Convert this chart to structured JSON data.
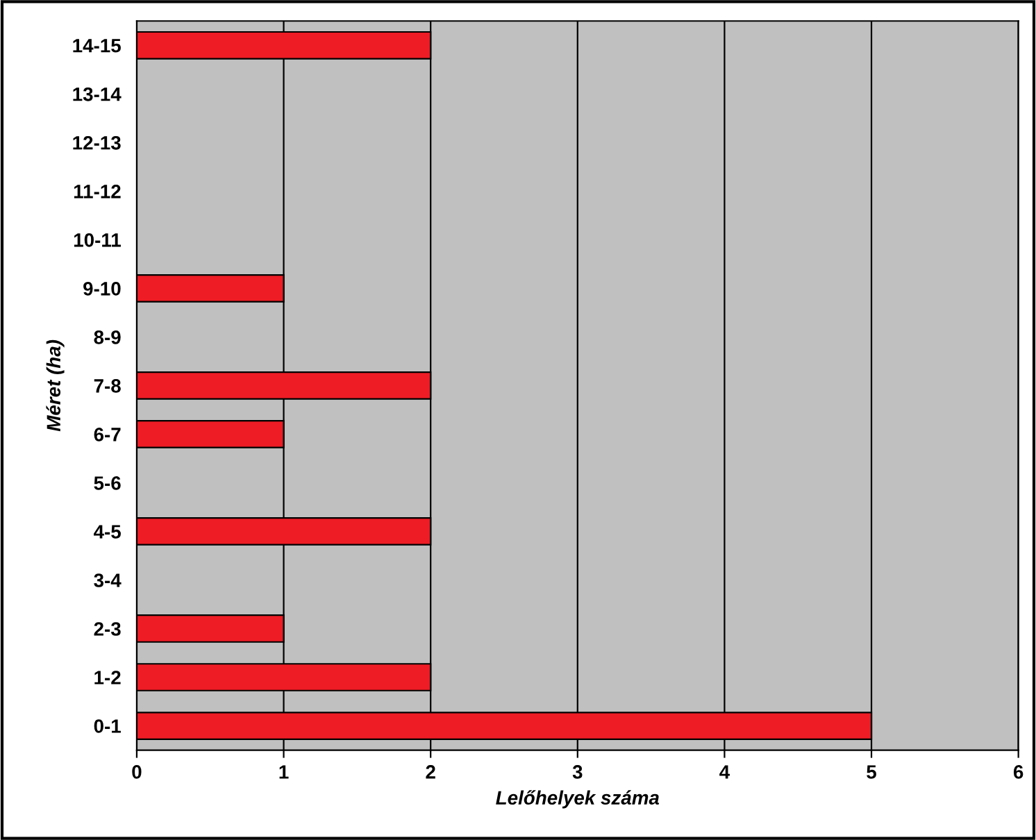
{
  "chart_data": {
    "type": "bar",
    "orientation": "horizontal",
    "xlabel": "Lelőhelyek száma",
    "ylabel": "Méret (ha)",
    "categories": [
      "14-15",
      "13-14",
      "12-13",
      "11-12",
      "10-11",
      "9-10",
      "8-9",
      "7-8",
      "6-7",
      "5-6",
      "4-5",
      "3-4",
      "2-3",
      "1-2",
      "0-1"
    ],
    "values": [
      2,
      0,
      0,
      0,
      0,
      1,
      0,
      2,
      1,
      0,
      2,
      0,
      1,
      2,
      5
    ],
    "color": "#ee1c25",
    "xlim": [
      0,
      6
    ],
    "xticks": [
      0,
      1,
      2,
      3,
      4,
      5,
      6
    ],
    "grid": "x"
  }
}
